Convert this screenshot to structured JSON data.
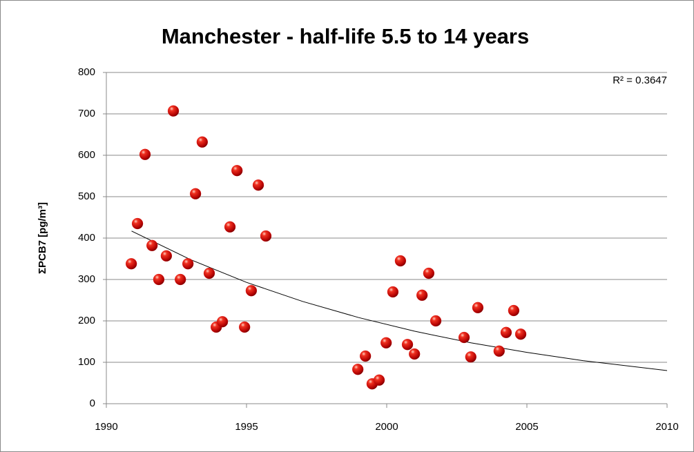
{
  "chart_data": {
    "type": "scatter",
    "title": "Manchester - half-life 5.5 to 14 years",
    "y_label": "ΣPCB7 [pg/m³]",
    "annotation": "R² = 0.3647",
    "x": [
      1990.89,
      1991.11,
      1991.38,
      1991.63,
      1991.87,
      1992.14,
      1992.39,
      1992.64,
      1992.91,
      1993.18,
      1993.42,
      1993.67,
      1993.92,
      1994.14,
      1994.41,
      1994.66,
      1994.93,
      1995.17,
      1995.42,
      1995.69,
      1998.97,
      1999.24,
      1999.48,
      1999.73,
      1999.98,
      2000.22,
      2000.49,
      2000.74,
      2000.99,
      2001.26,
      2001.5,
      2001.75,
      2002.76,
      2003.0,
      2003.25,
      2004.01,
      2004.26,
      2004.53,
      2004.78
    ],
    "values": [
      338,
      435,
      602,
      382,
      300,
      357,
      707,
      300,
      338,
      507,
      632,
      315,
      185,
      198,
      427,
      563,
      185,
      273,
      528,
      405,
      83,
      115,
      48,
      57,
      147,
      270,
      345,
      143,
      120,
      262,
      315,
      200,
      160,
      113,
      232,
      127,
      172,
      225,
      168
    ],
    "color": "#e01010",
    "trendline": {
      "x": [
        1990.9,
        1993,
        1995,
        1997,
        1999,
        2001,
        2003,
        2005,
        2007,
        2010
      ],
      "values": [
        417,
        348,
        293,
        247,
        208,
        175,
        147,
        124,
        104,
        80
      ],
      "color": "#000000"
    },
    "xlim": [
      1990,
      2010
    ],
    "xticks": [
      1990,
      1995,
      2000,
      2005,
      2010
    ],
    "ylim": [
      0,
      800
    ],
    "yticks": [
      0,
      100,
      200,
      300,
      400,
      500,
      600,
      700,
      800
    ],
    "grid": true
  }
}
